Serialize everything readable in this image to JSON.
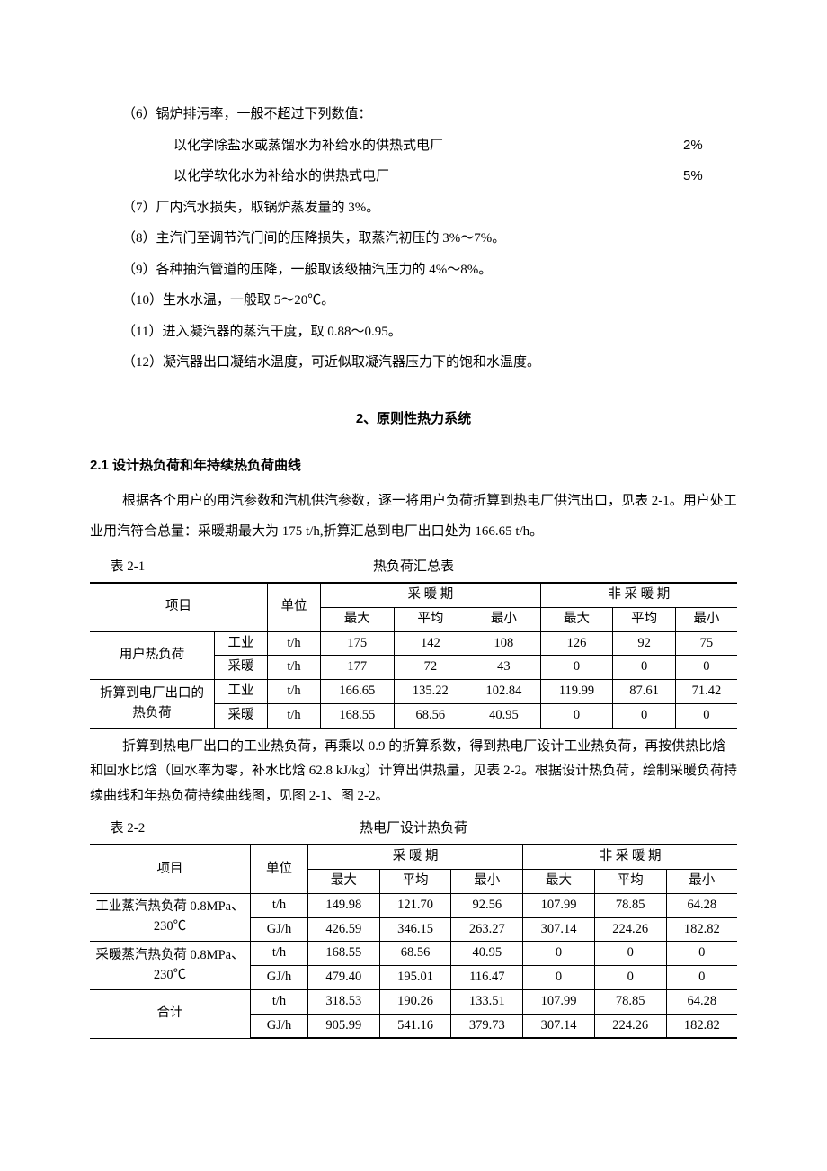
{
  "p6": "（6）锅炉排污率，一般不超过下列数值：",
  "p6a_label": "以化学除盐水或蒸馏水为补给水的供热式电厂",
  "p6a_pct": "2%",
  "p6b_label": "以化学软化水为补给水的供热式电厂",
  "p6b_pct": "5%",
  "p7": "（7）厂内汽水损失，取锅炉蒸发量的 3%。",
  "p8": "（8）主汽门至调节汽门间的压降损失，取蒸汽初压的 3%～7%。",
  "p9": "（9）各种抽汽管道的压降，一般取该级抽汽压力的 4%～8%。",
  "p10": "（10）生水水温，一般取 5～20℃。",
  "p11": "（11）进入凝汽器的蒸汽干度，取 0.88～0.95。",
  "p12": "（12）凝汽器出口凝结水温度，可近似取凝汽器压力下的饱和水温度。",
  "sec2_title": "2、原则性热力系统",
  "sec21_head": "2.1 设计热负荷和年持续热负荷曲线",
  "sec21_p1": "根据各个用户的用汽参数和汽机供汽参数，逐一将用户负荷折算到热电厂供汽出口，见表 2-1。用户处工业用汽符合总量：采暖期最大为 175 t/h,折算汇总到电厂出口处为 166.65 t/h。",
  "t21_cap_left": "表 2-1",
  "t21_cap_center": "热负荷汇总表",
  "t21": {
    "h_item": "项目",
    "h_unit": "单位",
    "h_warm": "采 暖 期",
    "h_nowarm": "非 采 暖 期",
    "h_max": "最大",
    "h_avg": "平均",
    "h_min": "最小",
    "rows": [
      {
        "g": "用户热负荷",
        "sub": "工业",
        "unit": "t/h",
        "a": "175",
        "b": "142",
        "c": "108",
        "d": "126",
        "e": "92",
        "f": "75"
      },
      {
        "g": "",
        "sub": "采暖",
        "unit": "t/h",
        "a": "177",
        "b": "72",
        "c": "43",
        "d": "0",
        "e": "0",
        "f": "0"
      },
      {
        "g": "折算到电厂出口的热负荷",
        "sub": "工业",
        "unit": "t/h",
        "a": "166.65",
        "b": "135.22",
        "c": "102.84",
        "d": "119.99",
        "e": "87.61",
        "f": "71.42"
      },
      {
        "g": "",
        "sub": "采暖",
        "unit": "t/h",
        "a": "168.55",
        "b": "68.56",
        "c": "40.95",
        "d": "0",
        "e": "0",
        "f": "0"
      }
    ]
  },
  "sec21_p2": "折算到热电厂出口的工业热负荷，再乘以 0.9 的折算系数，得到热电厂设计工业热负荷，再按供热比焓和回水比焓（回水率为零，补水比焓 62.8 kJ/kg）计算出供热量，见表 2-2。根据设计热负荷，绘制采暖负荷持续曲线和年热负荷持续曲线图，见图 2-1、图 2-2。",
  "t22_cap_left": "表 2-2",
  "t22_cap_center": "热电厂设计热负荷",
  "t22": {
    "h_item": "项目",
    "h_unit": "单位",
    "h_warm": "采 暖 期",
    "h_nowarm": "非 采 暖 期",
    "h_max": "最大",
    "h_avg": "平均",
    "h_min": "最小",
    "r1g": "工业蒸汽热负荷 0.8MPa、230℃",
    "r2g": "采暖蒸汽热负荷 0.8MPa、230℃",
    "r3g": "合计",
    "rows": [
      {
        "unit": "t/h",
        "a": "149.98",
        "b": "121.70",
        "c": "92.56",
        "d": "107.99",
        "e": "78.85",
        "f": "64.28"
      },
      {
        "unit": "GJ/h",
        "a": "426.59",
        "b": "346.15",
        "c": "263.27",
        "d": "307.14",
        "e": "224.26",
        "f": "182.82"
      },
      {
        "unit": "t/h",
        "a": "168.55",
        "b": "68.56",
        "c": "40.95",
        "d": "0",
        "e": "0",
        "f": "0"
      },
      {
        "unit": "GJ/h",
        "a": "479.40",
        "b": "195.01",
        "c": "116.47",
        "d": "0",
        "e": "0",
        "f": "0"
      },
      {
        "unit": "t/h",
        "a": "318.53",
        "b": "190.26",
        "c": "133.51",
        "d": "107.99",
        "e": "78.85",
        "f": "64.28"
      },
      {
        "unit": "GJ/h",
        "a": "905.99",
        "b": "541.16",
        "c": "379.73",
        "d": "307.14",
        "e": "224.26",
        "f": "182.82"
      }
    ]
  }
}
